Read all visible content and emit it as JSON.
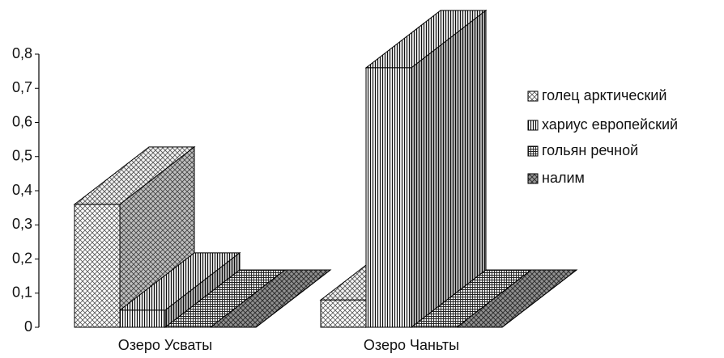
{
  "chart_data": {
    "type": "bar3d",
    "categories": [
      "Озеро Усваты",
      "Озеро Чаньты"
    ],
    "series": [
      {
        "name": "голец арктический",
        "color": "#555555",
        "values": [
          0.36,
          0.08
        ]
      },
      {
        "name": "хариус европейский",
        "color": "#111111",
        "values": [
          0.05,
          0.76
        ]
      },
      {
        "name": "гольян речной",
        "color": "#222222",
        "values": [
          0,
          0
        ]
      },
      {
        "name": "налим",
        "color": "#333333",
        "values": [
          0,
          0
        ]
      }
    ],
    "ylim": [
      0,
      0.8
    ],
    "yticks": [
      {
        "value": 0,
        "label": "0"
      },
      {
        "value": 0.1,
        "label": "0,1"
      },
      {
        "value": 0.2,
        "label": "0,2"
      },
      {
        "value": 0.3,
        "label": "0,3"
      },
      {
        "value": 0.4,
        "label": "0,4"
      },
      {
        "value": 0.5,
        "label": "0,5"
      },
      {
        "value": 0.6,
        "label": "0,6"
      },
      {
        "value": 0.7,
        "label": "0,7"
      },
      {
        "value": 0.8,
        "label": "0,8"
      }
    ],
    "legend": "right"
  }
}
